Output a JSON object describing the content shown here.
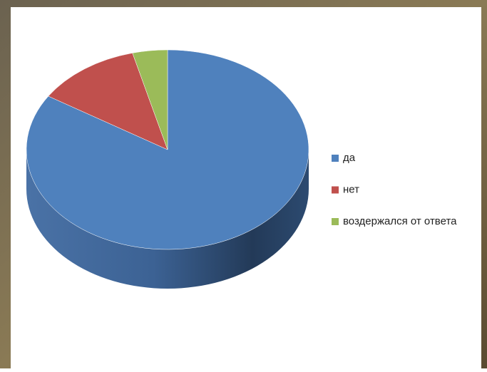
{
  "chart_data": {
    "type": "pie",
    "categories": [
      "да",
      "нет",
      "воздержался от ответа"
    ],
    "values": [
      84,
      12,
      4
    ],
    "colors": [
      "#4f81bd",
      "#c0504d",
      "#9bbb59"
    ],
    "legend": "right"
  }
}
